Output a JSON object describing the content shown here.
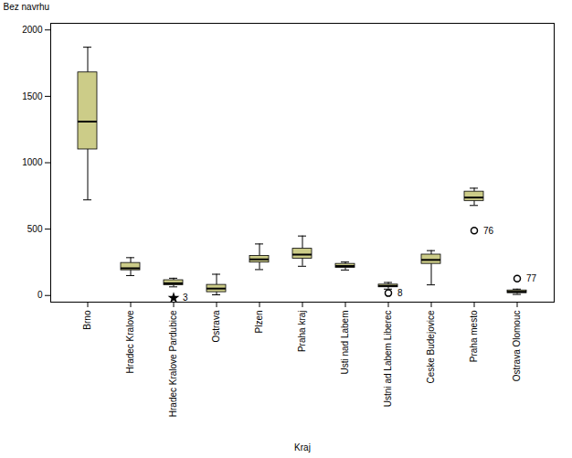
{
  "chart_data": {
    "type": "box",
    "xlabel": "Kraj",
    "ylabel": "Bez navrhu",
    "categories": [
      "Brno",
      "Hradec Kralove",
      "Hradec Kralove Pardubice",
      "Ostrava",
      "Plzen",
      "Praha kraj",
      "Usti nad Labem",
      "Ustni ad Labem Liberec",
      "Ceske Budejovice",
      "Praha mesto",
      "Ostrava Olomouc"
    ],
    "boxes": [
      {
        "whislo": 720,
        "q1": 1100,
        "med": 1310,
        "q3": 1680,
        "whishi": 1870
      },
      {
        "whislo": 150,
        "q1": 190,
        "med": 205,
        "q3": 245,
        "whishi": 285
      },
      {
        "whislo": 65,
        "q1": 78,
        "med": 92,
        "q3": 115,
        "whishi": 130
      },
      {
        "whislo": 5,
        "q1": 25,
        "med": 52,
        "q3": 80,
        "whishi": 160
      },
      {
        "whislo": 195,
        "q1": 248,
        "med": 272,
        "q3": 298,
        "whishi": 388
      },
      {
        "whislo": 220,
        "q1": 278,
        "med": 308,
        "q3": 352,
        "whishi": 448
      },
      {
        "whislo": 192,
        "q1": 208,
        "med": 222,
        "q3": 238,
        "whishi": 252
      },
      {
        "whislo": 48,
        "q1": 62,
        "med": 72,
        "q3": 82,
        "whishi": 98
      },
      {
        "whislo": 80,
        "q1": 238,
        "med": 268,
        "q3": 308,
        "whishi": 338
      },
      {
        "whislo": 678,
        "q1": 712,
        "med": 738,
        "q3": 782,
        "whishi": 808
      },
      {
        "whislo": 8,
        "q1": 18,
        "med": 28,
        "q3": 38,
        "whishi": 48
      }
    ],
    "outliers": [
      [],
      [],
      [
        {
          "value": -18,
          "label": "3",
          "marker": "star"
        }
      ],
      [],
      [],
      [],
      [],
      [
        {
          "value": 18,
          "label": "8",
          "marker": "circle"
        }
      ],
      [],
      [
        {
          "value": 488,
          "label": "76",
          "marker": "circle"
        }
      ],
      [
        {
          "value": 128,
          "label": "77",
          "marker": "circle"
        }
      ]
    ],
    "color": "#cccc88",
    "ylim": [
      -50,
      2050
    ],
    "yticks": [
      0,
      500,
      1000,
      1500,
      2000
    ],
    "grid": false
  }
}
